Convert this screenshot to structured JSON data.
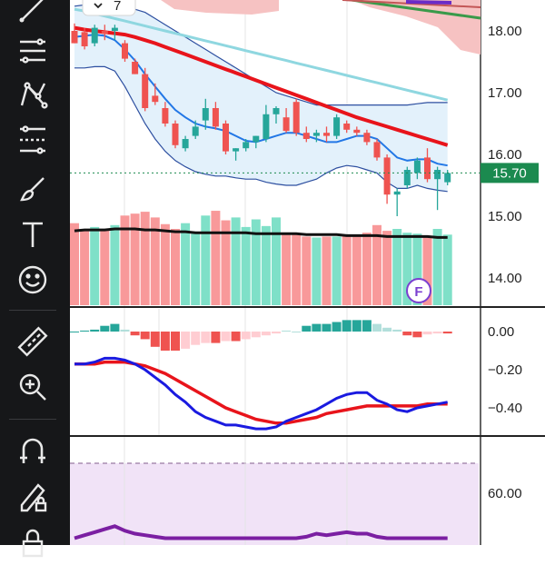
{
  "toolbar": {
    "tools": [
      {
        "name": "trend-line-icon",
        "interactable": true
      },
      {
        "name": "fib-retracement-icon",
        "interactable": true
      },
      {
        "name": "pattern-icon",
        "interactable": true
      },
      {
        "name": "prediction-icon",
        "interactable": true
      },
      {
        "name": "brush-icon",
        "interactable": true
      },
      {
        "name": "text-icon",
        "interactable": true
      },
      {
        "name": "emoji-icon",
        "interactable": true
      },
      {
        "name": "ruler-icon",
        "interactable": true
      },
      {
        "name": "zoom-in-icon",
        "interactable": true
      },
      {
        "name": "magnet-icon",
        "interactable": true
      },
      {
        "name": "lock-drawing-icon",
        "interactable": true
      },
      {
        "name": "lock-icon",
        "interactable": true
      }
    ]
  },
  "chart_data": [
    {
      "type": "candlestick",
      "panel": "price",
      "yaxis_ticks": [
        "18.00",
        "17.00",
        "16.00",
        "15.00",
        "14.00"
      ],
      "ylim": [
        13.5,
        18.5
      ],
      "last_price_label": "15.70",
      "last_price": 15.7,
      "last_price_color": "#1b8a4f",
      "hidden_indicators_badge": "7",
      "event_badge": "F",
      "candles": [
        {
          "o": 18.0,
          "h": 18.12,
          "l": 17.8,
          "c": 17.8
        },
        {
          "o": 17.98,
          "h": 18.05,
          "l": 17.7,
          "c": 17.75
        },
        {
          "o": 17.8,
          "h": 18.1,
          "l": 17.75,
          "c": 18.05
        },
        {
          "o": 18.0,
          "h": 18.1,
          "l": 17.85,
          "c": 17.95
        },
        {
          "o": 18.0,
          "h": 18.1,
          "l": 17.85,
          "c": 18.05
        },
        {
          "o": 17.8,
          "h": 17.85,
          "l": 17.5,
          "c": 17.55
        },
        {
          "o": 17.5,
          "h": 17.55,
          "l": 17.3,
          "c": 17.3
        },
        {
          "o": 17.3,
          "h": 17.4,
          "l": 16.7,
          "c": 16.75
        },
        {
          "o": 16.95,
          "h": 17.15,
          "l": 16.8,
          "c": 16.85
        },
        {
          "o": 16.75,
          "h": 16.85,
          "l": 16.45,
          "c": 16.5
        },
        {
          "o": 16.5,
          "h": 16.55,
          "l": 16.1,
          "c": 16.15
        },
        {
          "o": 16.1,
          "h": 16.3,
          "l": 16.05,
          "c": 16.25
        },
        {
          "o": 16.3,
          "h": 16.55,
          "l": 16.25,
          "c": 16.45
        },
        {
          "o": 16.55,
          "h": 16.9,
          "l": 16.4,
          "c": 16.75
        },
        {
          "o": 16.75,
          "h": 16.85,
          "l": 16.4,
          "c": 16.45
        },
        {
          "o": 16.5,
          "h": 16.55,
          "l": 16.0,
          "c": 16.05
        },
        {
          "o": 16.05,
          "h": 16.1,
          "l": 15.9,
          "c": 16.1
        },
        {
          "o": 16.1,
          "h": 16.25,
          "l": 16.05,
          "c": 16.2
        },
        {
          "o": 16.2,
          "h": 16.3,
          "l": 16.1,
          "c": 16.3
        },
        {
          "o": 16.25,
          "h": 16.8,
          "l": 16.2,
          "c": 16.65
        },
        {
          "o": 16.65,
          "h": 16.78,
          "l": 16.5,
          "c": 16.75
        },
        {
          "o": 16.6,
          "h": 16.75,
          "l": 16.35,
          "c": 16.38
        },
        {
          "o": 16.85,
          "h": 16.9,
          "l": 16.3,
          "c": 16.35
        },
        {
          "o": 16.35,
          "h": 16.45,
          "l": 16.2,
          "c": 16.25
        },
        {
          "o": 16.3,
          "h": 16.4,
          "l": 16.2,
          "c": 16.35
        },
        {
          "o": 16.35,
          "h": 16.45,
          "l": 16.2,
          "c": 16.3
        },
        {
          "o": 16.3,
          "h": 16.65,
          "l": 16.25,
          "c": 16.6
        },
        {
          "o": 16.5,
          "h": 16.55,
          "l": 16.35,
          "c": 16.4
        },
        {
          "o": 16.4,
          "h": 16.45,
          "l": 16.3,
          "c": 16.35
        },
        {
          "o": 16.35,
          "h": 16.4,
          "l": 16.15,
          "c": 16.2
        },
        {
          "o": 16.2,
          "h": 16.25,
          "l": 15.9,
          "c": 15.95
        },
        {
          "o": 15.95,
          "h": 16.0,
          "l": 15.2,
          "c": 15.35
        },
        {
          "o": 15.35,
          "h": 15.45,
          "l": 15.0,
          "c": 15.4
        },
        {
          "o": 15.5,
          "h": 15.8,
          "l": 15.45,
          "c": 15.75
        },
        {
          "o": 15.7,
          "h": 15.95,
          "l": 15.6,
          "c": 15.9
        },
        {
          "o": 15.95,
          "h": 16.1,
          "l": 15.55,
          "c": 15.6
        },
        {
          "o": 15.6,
          "h": 15.8,
          "l": 15.1,
          "c": 15.75
        },
        {
          "o": 15.55,
          "h": 15.75,
          "l": 15.5,
          "c": 15.7
        }
      ],
      "overlays": {
        "ma_red": [
          18.05,
          18.02,
          18.0,
          17.98,
          17.96,
          17.94,
          17.9,
          17.85,
          17.8,
          17.74,
          17.68,
          17.62,
          17.56,
          17.5,
          17.44,
          17.38,
          17.32,
          17.26,
          17.2,
          17.14,
          17.08,
          17.02,
          16.96,
          16.9,
          16.84,
          16.78,
          16.72,
          16.66,
          16.6,
          16.55,
          16.5,
          16.45,
          16.4,
          16.35,
          16.3,
          16.25,
          16.2,
          16.15
        ],
        "ma_blue": [
          17.9,
          17.92,
          17.94,
          17.92,
          17.85,
          17.7,
          17.52,
          17.3,
          17.1,
          16.9,
          16.72,
          16.6,
          16.5,
          16.45,
          16.42,
          16.38,
          16.3,
          16.22,
          16.2,
          16.25,
          16.3,
          16.35,
          16.35,
          16.3,
          16.25,
          16.2,
          16.2,
          16.25,
          16.3,
          16.3,
          16.25,
          16.1,
          15.95,
          15.9,
          15.92,
          15.92,
          15.85,
          15.82
        ],
        "bb_upper": [
          18.4,
          18.42,
          18.45,
          18.45,
          18.45,
          18.4,
          18.35,
          18.3,
          18.2,
          18.1,
          18.0,
          17.9,
          17.8,
          17.7,
          17.6,
          17.5,
          17.4,
          17.3,
          17.2,
          17.1,
          17.0,
          16.95,
          16.9,
          16.85,
          16.8,
          16.8,
          16.8,
          16.8,
          16.8,
          16.8,
          16.8,
          16.8,
          16.8,
          16.8,
          16.82,
          16.84,
          16.84,
          16.84
        ],
        "bb_lower": [
          17.4,
          17.4,
          17.42,
          17.42,
          17.35,
          17.1,
          16.8,
          16.5,
          16.25,
          16.05,
          15.9,
          15.8,
          15.72,
          15.68,
          15.65,
          15.65,
          15.62,
          15.6,
          15.6,
          15.55,
          15.52,
          15.5,
          15.5,
          15.55,
          15.6,
          15.7,
          15.78,
          15.82,
          15.8,
          15.75,
          15.7,
          15.55,
          15.45,
          15.45,
          15.5,
          15.45,
          15.42,
          15.4
        ],
        "ma_cyan": [
          18.35,
          18.32,
          18.28,
          18.24,
          18.2,
          18.16,
          18.12,
          18.08,
          18.04,
          18.0,
          17.96,
          17.92,
          17.88,
          17.84,
          17.8,
          17.76,
          17.72,
          17.68,
          17.64,
          17.6,
          17.56,
          17.52,
          17.48,
          17.44,
          17.4,
          17.36,
          17.32,
          17.28,
          17.24,
          17.2,
          17.16,
          17.12,
          17.08,
          17.04,
          17.0,
          16.96,
          16.92,
          16.88
        ]
      },
      "volume": [
        86,
        80,
        82,
        80,
        84,
        94,
        96,
        98,
        92,
        85,
        80,
        86,
        75,
        94,
        99,
        89,
        92,
        82,
        90,
        83,
        92,
        75,
        74,
        72,
        71,
        72,
        72,
        74,
        73,
        76,
        84,
        78,
        80,
        76,
        75,
        72,
        80,
        74
      ],
      "volume_ma": [
        78,
        79,
        79,
        79,
        80,
        80,
        80,
        79,
        79,
        78,
        77,
        77,
        76,
        76,
        76,
        76,
        76,
        76,
        75,
        75,
        75,
        75,
        75,
        74,
        74,
        74,
        74,
        73,
        73,
        73,
        73,
        72,
        72,
        72,
        72,
        72,
        71,
        71
      ]
    },
    {
      "type": "macd",
      "panel": "macd",
      "yaxis_ticks": [
        "0.00",
        "−0.20",
        "−0.40"
      ],
      "ylim": [
        -0.55,
        0.1
      ],
      "histogram": [
        0.0,
        0.005,
        0.01,
        0.03,
        0.04,
        0.01,
        -0.02,
        -0.04,
        -0.08,
        -0.1,
        -0.1,
        -0.09,
        -0.07,
        -0.06,
        -0.06,
        -0.05,
        -0.05,
        -0.04,
        -0.03,
        -0.02,
        -0.01,
        0.005,
        0.0,
        0.03,
        0.04,
        0.04,
        0.05,
        0.06,
        0.06,
        0.06,
        0.04,
        0.02,
        0.01,
        -0.02,
        -0.03,
        -0.015,
        -0.01,
        -0.01
      ],
      "macd_line": [
        -0.17,
        -0.17,
        -0.16,
        -0.14,
        -0.14,
        -0.15,
        -0.17,
        -0.2,
        -0.24,
        -0.28,
        -0.33,
        -0.37,
        -0.42,
        -0.45,
        -0.47,
        -0.49,
        -0.49,
        -0.5,
        -0.51,
        -0.51,
        -0.5,
        -0.47,
        -0.45,
        -0.43,
        -0.41,
        -0.38,
        -0.35,
        -0.33,
        -0.32,
        -0.32,
        -0.36,
        -0.38,
        -0.41,
        -0.42,
        -0.4,
        -0.39,
        -0.38,
        -0.37
      ],
      "signal_line": [
        -0.17,
        -0.17,
        -0.17,
        -0.16,
        -0.16,
        -0.16,
        -0.17,
        -0.18,
        -0.2,
        -0.22,
        -0.25,
        -0.28,
        -0.31,
        -0.34,
        -0.37,
        -0.4,
        -0.42,
        -0.44,
        -0.46,
        -0.47,
        -0.48,
        -0.48,
        -0.47,
        -0.46,
        -0.45,
        -0.43,
        -0.42,
        -0.41,
        -0.4,
        -0.39,
        -0.39,
        -0.39,
        -0.39,
        -0.39,
        -0.39,
        -0.38,
        -0.38,
        -0.38
      ]
    },
    {
      "type": "line",
      "panel": "oscillator",
      "yaxis_ticks": [
        "60.00"
      ],
      "ylim": [
        30,
        82
      ],
      "overbought_level": 80,
      "band_color": "#f1e3f7",
      "line_color": "#7b1fa2",
      "values": [
        30,
        32,
        34,
        36,
        38,
        35,
        33,
        32,
        31,
        30,
        30,
        30,
        30,
        30,
        30,
        30,
        30,
        30,
        30,
        30,
        30,
        30,
        30,
        31,
        33,
        32,
        33,
        34,
        33,
        33,
        31,
        30,
        30,
        30,
        30,
        30,
        30,
        30
      ]
    }
  ],
  "colors": {
    "up": "#26a69a",
    "down": "#ef5350",
    "vol_up": "#7fe0c8",
    "vol_down": "#f8999a",
    "ma_red": "#e8141b",
    "ma_blue": "#2277e6",
    "ma_cyan": "#8fd7e0",
    "bb_line": "#2d4fa0",
    "bb_fill": "#e3f1fb",
    "macd_blue": "#1a1ae0",
    "signal_red": "#e8141b"
  }
}
